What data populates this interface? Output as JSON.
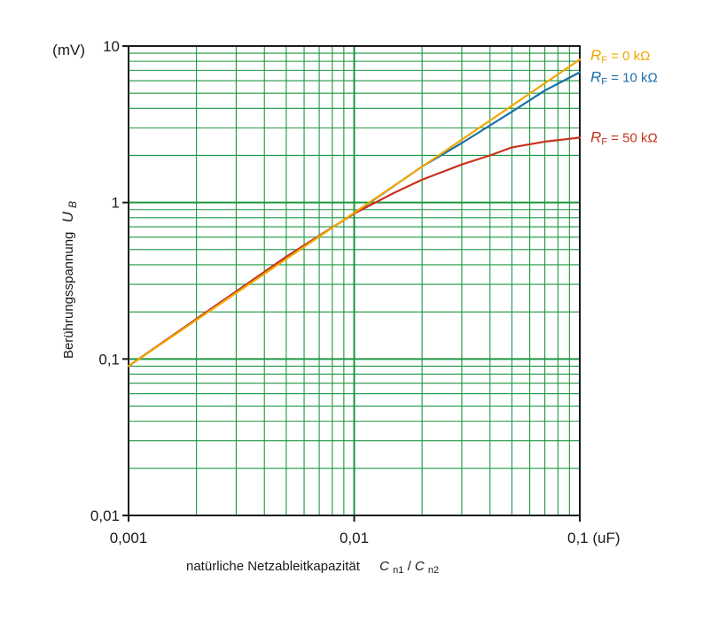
{
  "chart_data": {
    "type": "line",
    "xscale": "log",
    "yscale": "log",
    "xlim": [
      0.001,
      0.1
    ],
    "ylim": [
      0.01,
      10
    ],
    "grid": true,
    "grid_color": "#1e9640",
    "x_ticks": [
      "0,001",
      "0,01",
      "0,1 (uF)"
    ],
    "y_ticks": [
      "0,01",
      "0,1",
      "1",
      "10"
    ],
    "y_unit": "(mV)",
    "xlabel": {
      "text": "natürliche Netzableitkapazität",
      "var1": "C",
      "sub1": "n1",
      "slash": "/",
      "var2": "C",
      "sub2": "n2"
    },
    "ylabel": {
      "text": "Berührungsspannung",
      "var": "U",
      "sub": "B"
    },
    "series": [
      {
        "name": "R_F = 0 kΩ",
        "var": "R",
        "sub": "F",
        "value": " = 0 kΩ",
        "color": "#f0a800",
        "x": [
          0.001,
          0.1
        ],
        "y": [
          0.09,
          8.2
        ]
      },
      {
        "name": "R_F = 10 kΩ",
        "var": "R",
        "sub": "F",
        "value": " = 10 kΩ",
        "color": "#1a6fa8",
        "x": [
          0.001,
          0.002,
          0.005,
          0.01,
          0.02,
          0.03,
          0.05,
          0.07,
          0.1
        ],
        "y": [
          0.09,
          0.18,
          0.45,
          0.85,
          1.7,
          2.4,
          3.8,
          5.2,
          6.8
        ]
      },
      {
        "name": "R_F = 50 kΩ",
        "var": "R",
        "sub": "F",
        "value": " = 50 kΩ",
        "color": "#c8321e",
        "x": [
          0.001,
          0.002,
          0.005,
          0.01,
          0.015,
          0.02,
          0.03,
          0.04,
          0.05,
          0.07,
          0.1
        ],
        "y": [
          0.09,
          0.18,
          0.45,
          0.85,
          1.15,
          1.4,
          1.75,
          2.0,
          2.25,
          2.45,
          2.6
        ]
      }
    ]
  }
}
